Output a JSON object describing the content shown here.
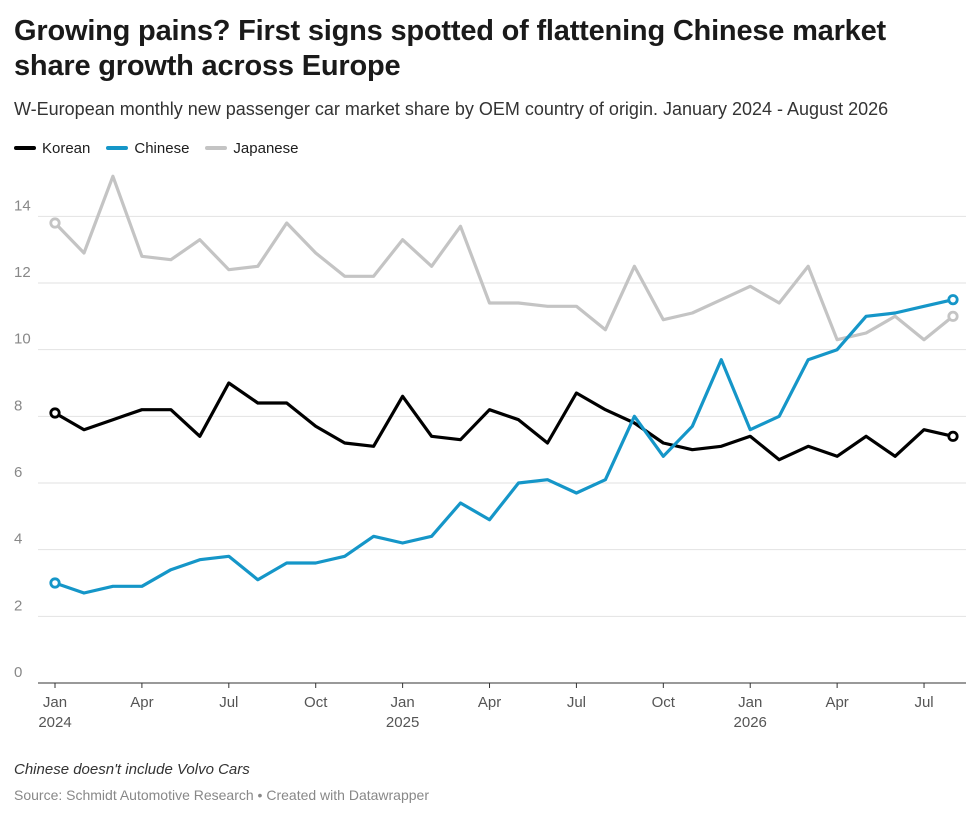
{
  "title": "Growing pains? First signs spotted of flattening Chinese market share growth across Europe",
  "subtitle": "W-European monthly new passenger car market share by OEM country of origin. January 2024 - August 2026",
  "notes": "Chinese doesn't include Volvo Cars",
  "source": "Source: Schmidt Automotive Research • Created with Datawrapper",
  "legend": [
    {
      "name": "Korean",
      "color": "#000000"
    },
    {
      "name": "Chinese",
      "color": "#1596c8"
    },
    {
      "name": "Japanese",
      "color": "#c4c4c4"
    }
  ],
  "chart_data": {
    "type": "line",
    "x": [
      "2024-01",
      "2024-02",
      "2024-03",
      "2024-04",
      "2024-05",
      "2024-06",
      "2024-07",
      "2024-08",
      "2024-09",
      "2024-10",
      "2024-11",
      "2024-12",
      "2025-01",
      "2025-02",
      "2025-03",
      "2025-04",
      "2025-05",
      "2025-06",
      "2025-07",
      "2025-08",
      "2025-09",
      "2025-10",
      "2025-11",
      "2025-12",
      "2026-01",
      "2026-02",
      "2026-03",
      "2026-04",
      "2026-05",
      "2026-06",
      "2026-07",
      "2026-08"
    ],
    "series": [
      {
        "name": "Japanese",
        "color": "#c4c4c4",
        "values": [
          13.8,
          12.9,
          15.2,
          12.8,
          12.7,
          13.3,
          12.4,
          12.5,
          13.8,
          12.9,
          12.2,
          12.2,
          13.3,
          12.5,
          13.7,
          11.4,
          11.4,
          11.3,
          11.3,
          10.6,
          12.5,
          10.9,
          11.1,
          11.5,
          11.9,
          11.4,
          12.5,
          10.3,
          10.5,
          11.0,
          10.3,
          11.0
        ]
      },
      {
        "name": "Korean",
        "color": "#000000",
        "values": [
          8.1,
          7.6,
          7.9,
          8.2,
          8.2,
          7.4,
          9.0,
          8.4,
          8.4,
          7.7,
          7.2,
          7.1,
          8.6,
          7.4,
          7.3,
          8.2,
          7.9,
          7.2,
          8.7,
          8.2,
          7.8,
          7.2,
          7.0,
          7.1,
          7.4,
          6.7,
          7.1,
          6.8,
          7.4,
          6.8,
          7.6,
          7.4
        ]
      },
      {
        "name": "Chinese",
        "color": "#1596c8",
        "values": [
          3.0,
          2.7,
          2.9,
          2.9,
          3.4,
          3.7,
          3.8,
          3.1,
          3.6,
          3.6,
          3.8,
          4.4,
          4.2,
          4.4,
          5.4,
          4.9,
          6.0,
          6.1,
          5.7,
          6.1,
          8.0,
          6.8,
          7.7,
          9.7,
          7.6,
          8.0,
          9.7,
          10.0,
          11.0,
          11.1,
          11.3,
          11.5
        ]
      }
    ],
    "ylim": [
      0,
      15
    ],
    "yticks": [
      0,
      2,
      4,
      6,
      8,
      10,
      12,
      14
    ],
    "xticks": [
      {
        "x": "2024-01",
        "label": "Jan",
        "year": "2024"
      },
      {
        "x": "2024-04",
        "label": "Apr",
        "year": ""
      },
      {
        "x": "2024-07",
        "label": "Jul",
        "year": ""
      },
      {
        "x": "2024-10",
        "label": "Oct",
        "year": ""
      },
      {
        "x": "2025-01",
        "label": "Jan",
        "year": "2025"
      },
      {
        "x": "2025-04",
        "label": "Apr",
        "year": ""
      },
      {
        "x": "2025-07",
        "label": "Jul",
        "year": ""
      },
      {
        "x": "2025-10",
        "label": "Oct",
        "year": ""
      },
      {
        "x": "2026-01",
        "label": "Jan",
        "year": "2026"
      },
      {
        "x": "2026-04",
        "label": "Apr",
        "year": ""
      },
      {
        "x": "2026-07",
        "label": "Jul",
        "year": ""
      }
    ],
    "grid": true,
    "legend_position": "top-left"
  }
}
